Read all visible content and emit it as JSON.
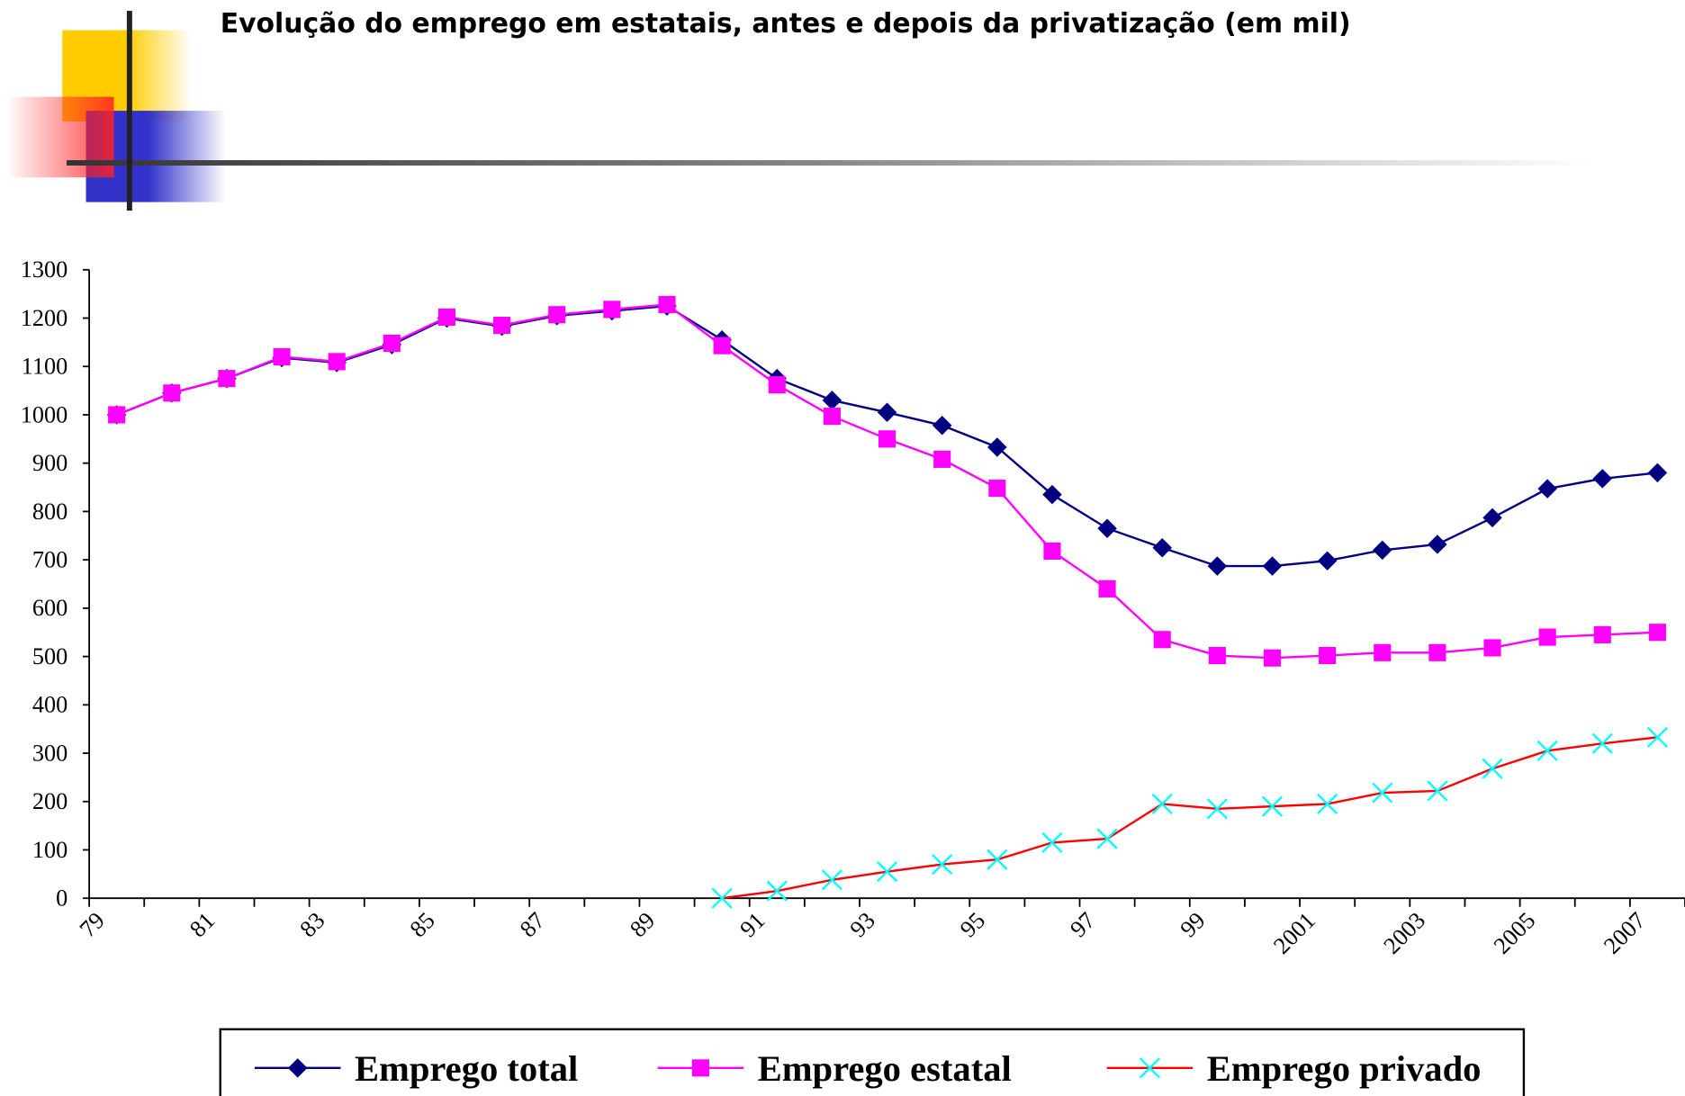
{
  "chart_data": {
    "type": "line",
    "title": "Evolução do emprego em estatais, antes e depois da privatização (em mil)",
    "categories": [
      "79",
      null,
      "81",
      null,
      "83",
      null,
      "85",
      null,
      "87",
      null,
      "89",
      null,
      "91",
      null,
      "93",
      null,
      "95",
      null,
      "97",
      null,
      "99",
      null,
      "2001",
      null,
      "2003",
      null,
      "2005",
      null,
      "2007"
    ],
    "series": [
      {
        "name": "Emprego total",
        "color": "#000080",
        "marker": "diamond",
        "marker_color": "#000080",
        "values": [
          1000,
          1045,
          1075,
          1118,
          1108,
          1145,
          1200,
          1183,
          1205,
          1215,
          1225,
          1155,
          1075,
          1030,
          1005,
          978,
          933,
          835,
          765,
          725,
          687,
          687,
          698,
          720,
          732,
          787,
          847,
          868,
          880
        ]
      },
      {
        "name": "Emprego estatal",
        "color": "#ff00ff",
        "marker": "square",
        "marker_color": "#ff00ff",
        "values": [
          1000,
          1045,
          1075,
          1120,
          1110,
          1148,
          1202,
          1185,
          1207,
          1218,
          1228,
          1143,
          1062,
          997,
          950,
          908,
          848,
          718,
          640,
          535,
          502,
          497,
          502,
          508,
          508,
          518,
          540,
          545,
          550
        ]
      },
      {
        "name": "Emprego privado",
        "color": "#ff0000",
        "marker": "x",
        "marker_color": "#00ffff",
        "values": [
          null,
          null,
          null,
          null,
          null,
          null,
          null,
          null,
          null,
          null,
          null,
          0,
          15,
          38,
          55,
          70,
          80,
          115,
          123,
          195,
          185,
          190,
          195,
          218,
          222,
          268,
          305,
          320,
          333
        ]
      }
    ],
    "ylim": [
      0,
      1300
    ],
    "yticks": [
      0,
      100,
      200,
      300,
      400,
      500,
      600,
      700,
      800,
      900,
      1000,
      1100,
      1200,
      1300
    ],
    "grid": false,
    "legend": "bottom"
  }
}
